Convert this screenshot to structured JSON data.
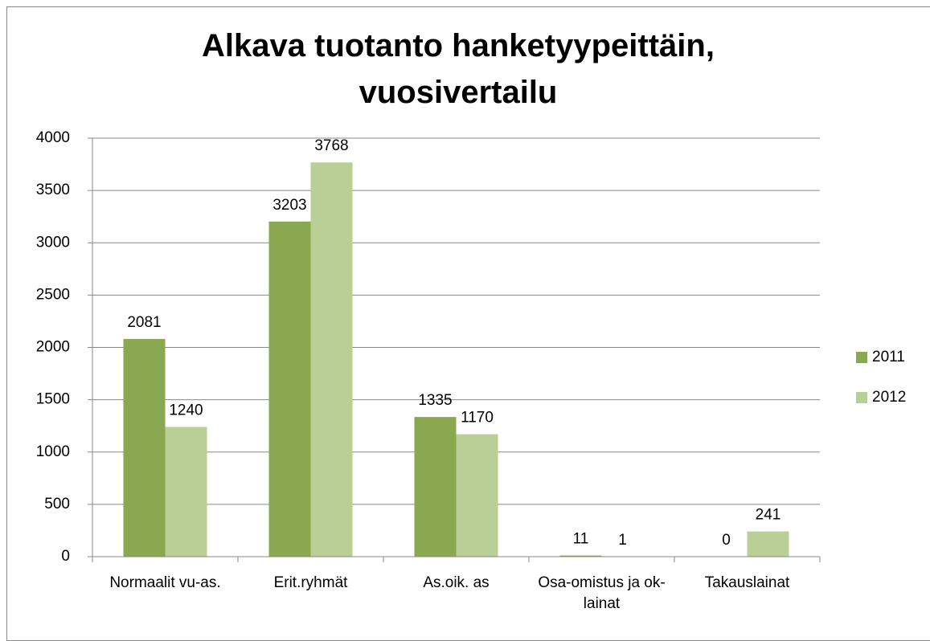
{
  "chart_data": {
    "type": "bar",
    "title": "Alkava tuotanto hanketyypeittäin, vuosivertailu",
    "categories": [
      "Normaalit vu-as.",
      "Erit.ryhmät",
      "As.oik. as",
      "Osa-omistus ja ok-lainat",
      "Takauslainat"
    ],
    "series": [
      {
        "name": "2011",
        "color": "#8aa84f",
        "values": [
          2081,
          3203,
          1335,
          11,
          0
        ]
      },
      {
        "name": "2012",
        "color": "#bacf96",
        "values": [
          1240,
          3768,
          1170,
          1,
          241
        ]
      }
    ],
    "ylim": [
      0,
      4000
    ],
    "yticks": [
      0,
      500,
      1000,
      1500,
      2000,
      2500,
      3000,
      3500,
      4000
    ],
    "grid": true,
    "legend": "right"
  }
}
